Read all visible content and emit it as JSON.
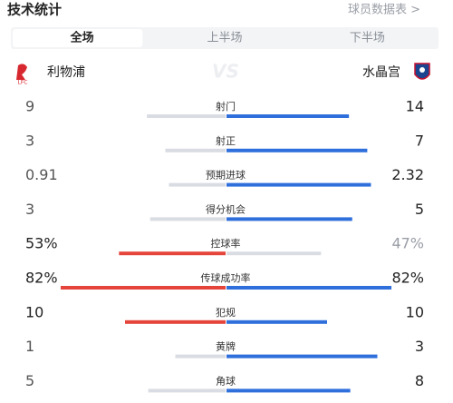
{
  "header": {
    "title": "技术统计",
    "link": "球员数据表 >"
  },
  "tabs": [
    "全场",
    "上半场",
    "下半场"
  ],
  "selected_tab": 0,
  "teams": {
    "home": "利物浦",
    "vs": "VS",
    "away": "水晶宫"
  },
  "colors": {
    "home": "#e5443b",
    "away": "#2f6fdc",
    "lose": "#d9dce2"
  },
  "stats": [
    {
      "label": "射门",
      "home": 9,
      "away": 14
    },
    {
      "label": "射正",
      "home": 3,
      "away": 7
    },
    {
      "label": "预期进球",
      "home": 0.91,
      "away": 2.32
    },
    {
      "label": "得分机会",
      "home": 3,
      "away": 5
    },
    {
      "label": "控球率",
      "home": {
        "value": 53,
        "label": "53%"
      },
      "away": {
        "value": 47,
        "label": "47%"
      },
      "percent": true
    },
    {
      "label": "传球成功率",
      "home": {
        "value": 82,
        "label": "82%"
      },
      "away": {
        "value": 82,
        "label": "82%"
      },
      "percent": true
    },
    {
      "label": "犯规",
      "home": 10,
      "away": 10
    },
    {
      "label": "黄牌",
      "home": 1,
      "away": 3
    },
    {
      "label": "角球",
      "home": 5,
      "away": 8
    }
  ]
}
